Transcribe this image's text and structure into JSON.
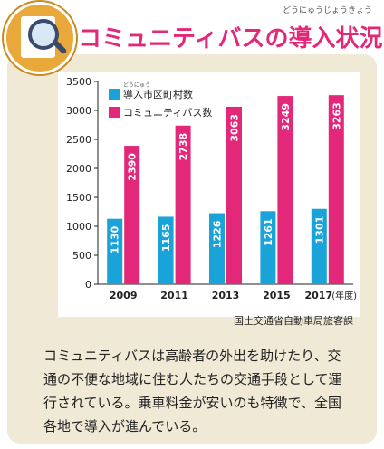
{
  "title": "コミュニティバスの導入状況",
  "title_ruby": "どうにゅうじょうきょう",
  "source": "国土交通省自動車局旅客課",
  "description": [
    "コミュニティバスは高齢者の外出を助けたり、交",
    "通の不便な地域に住む人たちの交通手段として運",
    "行されている。乗車料金が安いのも特徴で、全国",
    "各地で導入が進んでいる。"
  ],
  "colors": {
    "series1": "#1aa3d8",
    "series2": "#e3287a",
    "title": "#e3287a"
  },
  "chart_data": {
    "type": "bar",
    "categories": [
      "2009",
      "2011",
      "2013",
      "2015",
      "2017"
    ],
    "x_unit_label": "(年度)",
    "series": [
      {
        "name": "導入市区町村数",
        "values": [
          1130,
          1165,
          1226,
          1261,
          1301
        ],
        "ruby": "どうにゅう"
      },
      {
        "name": "コミュニティバス数",
        "values": [
          2390,
          2738,
          3063,
          3249,
          3263
        ]
      }
    ],
    "ylim": [
      0,
      3500
    ],
    "yticks": [
      0,
      500,
      1000,
      1500,
      2000,
      2500,
      3000,
      3500
    ],
    "grid": false,
    "legend": "top-left"
  }
}
